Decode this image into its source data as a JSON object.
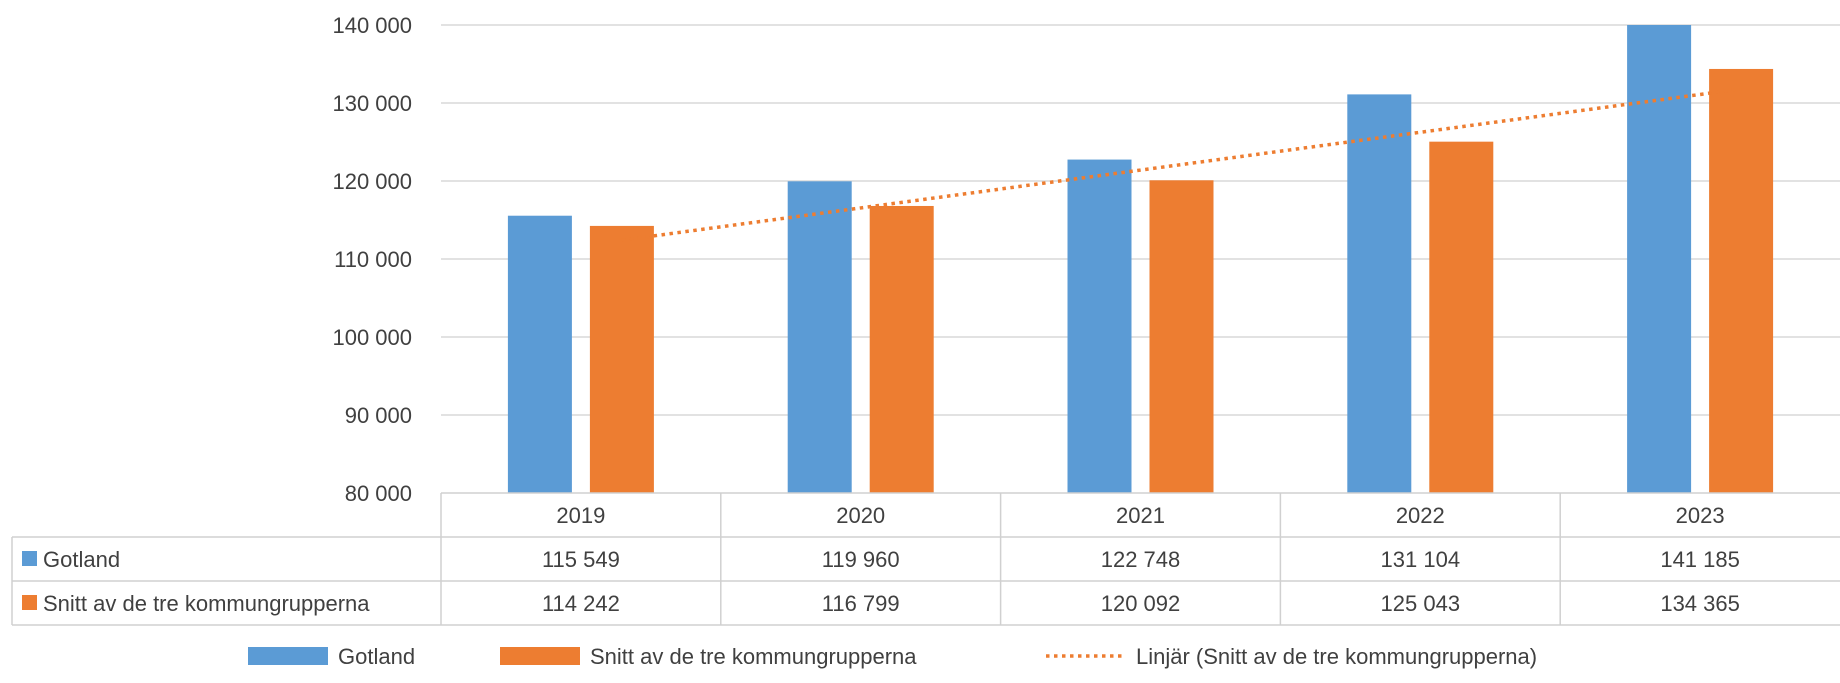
{
  "chart_data": {
    "type": "bar",
    "categories": [
      "2019",
      "2020",
      "2021",
      "2022",
      "2023"
    ],
    "series": [
      {
        "name": "Gotland",
        "color": "#5B9BD5",
        "values": [
          115549,
          119960,
          122748,
          131104,
          141185
        ],
        "labels": [
          "115 549",
          "119 960",
          "122 748",
          "131 104",
          "141 185"
        ]
      },
      {
        "name": "Snitt av de tre kommungrupperna",
        "color": "#ED7D31",
        "values": [
          114242,
          116799,
          120092,
          125043,
          134365
        ],
        "labels": [
          "114 242",
          "116 799",
          "120 092",
          "125 043",
          "134 365"
        ]
      }
    ],
    "trendline": {
      "name": "Linjär (Snitt av de tre kommungrupperna)",
      "series_index": 1,
      "type": "linear",
      "style": "dotted",
      "color": "#ED7D31"
    },
    "y_ticks": [
      80000,
      90000,
      100000,
      110000,
      120000,
      130000,
      140000
    ],
    "y_tick_labels": [
      "80 000",
      "90 000",
      "100 000",
      "110 000",
      "120 000",
      "130 000",
      "140 000"
    ],
    "ylim": [
      80000,
      140000
    ],
    "grid": true,
    "data_table": true,
    "legend_position": "bottom",
    "title": "",
    "xlabel": "",
    "ylabel": ""
  }
}
